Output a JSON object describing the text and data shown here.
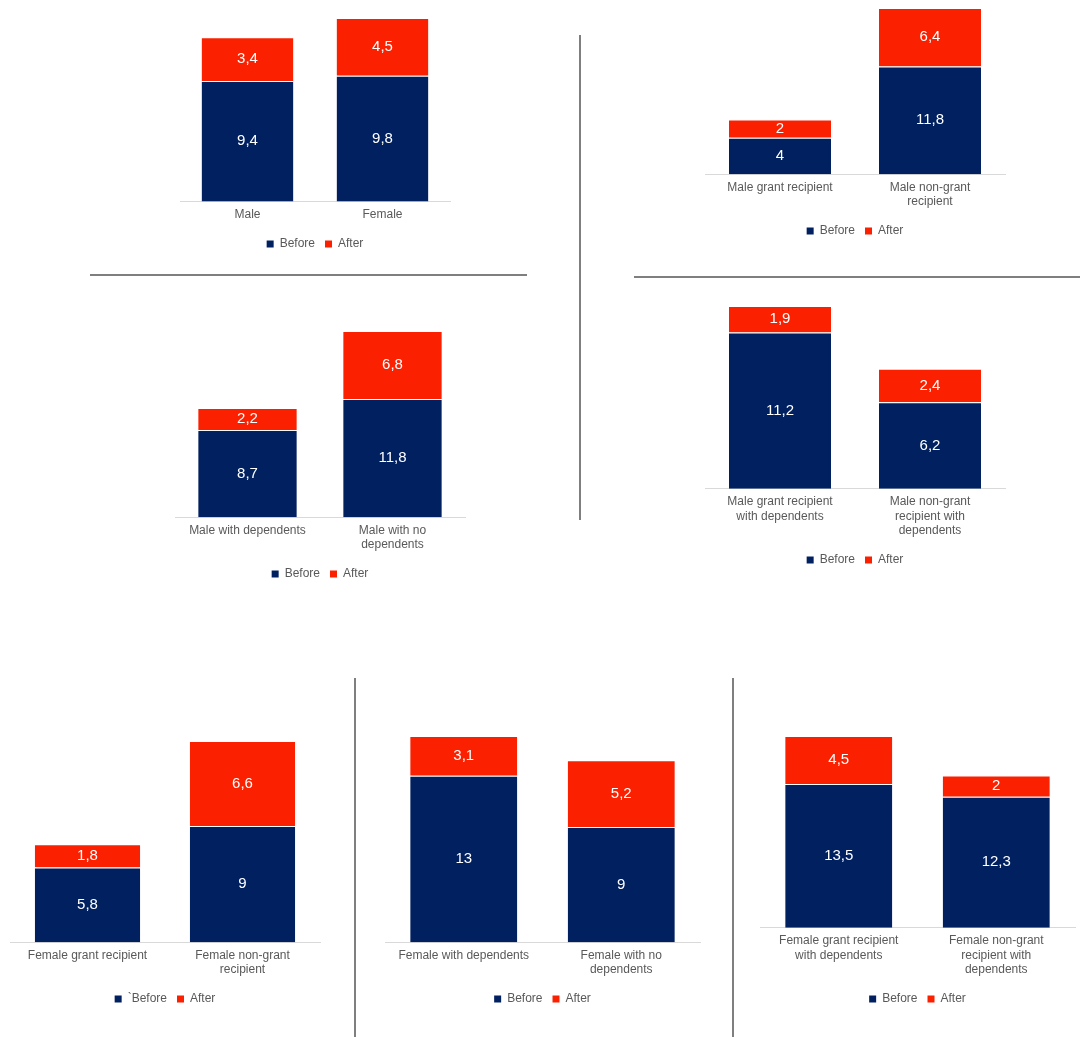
{
  "chart_data": [
    {
      "type": "bar",
      "stacked": true,
      "legend": "bottom",
      "categories": [
        "Male",
        "Female"
      ],
      "series": [
        {
          "name": "Before",
          "color": "#002060",
          "values": [
            9.4,
            9.8
          ],
          "value_labels": [
            "9,4",
            "9,8"
          ]
        },
        {
          "name": "After",
          "color": "#fa2000",
          "values": [
            3.4,
            4.5
          ],
          "value_labels": [
            "3,4",
            "4,5"
          ]
        }
      ]
    },
    {
      "type": "bar",
      "stacked": true,
      "legend": "bottom",
      "categories": [
        "Male grant recipient",
        "Male non-grant recipient"
      ],
      "series": [
        {
          "name": "Before",
          "color": "#002060",
          "values": [
            4,
            11.8
          ],
          "value_labels": [
            "4",
            "11,8"
          ]
        },
        {
          "name": "After",
          "color": "#fa2000",
          "values": [
            2,
            6.4
          ],
          "value_labels": [
            "2",
            "6,4"
          ]
        }
      ]
    },
    {
      "type": "bar",
      "stacked": true,
      "legend": "bottom",
      "categories": [
        "Male with dependents",
        "Male with no dependents"
      ],
      "series": [
        {
          "name": "Before",
          "color": "#002060",
          "values": [
            8.7,
            11.8
          ],
          "value_labels": [
            "8,7",
            "11,8"
          ]
        },
        {
          "name": "After",
          "color": "#fa2000",
          "values": [
            2.2,
            6.8
          ],
          "value_labels": [
            "2,2",
            "6,8"
          ]
        }
      ]
    },
    {
      "type": "bar",
      "stacked": true,
      "legend": "bottom",
      "categories": [
        "Male grant recipient with dependents",
        "Male non-grant recipient with dependents"
      ],
      "series": [
        {
          "name": "Before",
          "color": "#002060",
          "values": [
            11.2,
            6.2
          ],
          "value_labels": [
            "11,2",
            "6,2"
          ]
        },
        {
          "name": "After",
          "color": "#fa2000",
          "values": [
            1.9,
            2.4
          ],
          "value_labels": [
            "1,9",
            "2,4"
          ]
        }
      ]
    },
    {
      "type": "bar",
      "stacked": true,
      "legend": "bottom",
      "categories": [
        "Female grant recipient",
        "Female non-grant recipient"
      ],
      "series": [
        {
          "name": "`Before",
          "color": "#002060",
          "values": [
            5.8,
            9
          ],
          "value_labels": [
            "5,8",
            "9"
          ]
        },
        {
          "name": "After",
          "color": "#fa2000",
          "values": [
            1.8,
            6.6
          ],
          "value_labels": [
            "1,8",
            "6,6"
          ]
        }
      ]
    },
    {
      "type": "bar",
      "stacked": true,
      "legend": "bottom",
      "categories": [
        "Female with dependents",
        "Female with no dependents"
      ],
      "series": [
        {
          "name": "Before",
          "color": "#002060",
          "values": [
            13,
            9
          ],
          "value_labels": [
            "13",
            "9"
          ]
        },
        {
          "name": "After",
          "color": "#fa2000",
          "values": [
            3.1,
            5.2
          ],
          "value_labels": [
            "3,1",
            "5,2"
          ]
        }
      ]
    },
    {
      "type": "bar",
      "stacked": true,
      "legend": "bottom",
      "categories": [
        "Female grant recipient with dependents",
        "Female non-grant recipient with dependents"
      ],
      "series": [
        {
          "name": "Before",
          "color": "#002060",
          "values": [
            13.5,
            12.3
          ],
          "value_labels": [
            "13,5",
            "12,3"
          ]
        },
        {
          "name": "After",
          "color": "#fa2000",
          "values": [
            4.5,
            2
          ],
          "value_labels": [
            "4,5",
            "2"
          ]
        }
      ]
    }
  ]
}
